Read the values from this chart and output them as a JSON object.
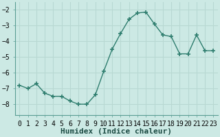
{
  "x": [
    0,
    1,
    2,
    3,
    4,
    5,
    6,
    7,
    8,
    9,
    10,
    11,
    12,
    13,
    14,
    15,
    16,
    17,
    18,
    19,
    20,
    21,
    22,
    23
  ],
  "y": [
    -6.8,
    -7.0,
    -6.7,
    -7.3,
    -7.5,
    -7.5,
    -7.8,
    -8.0,
    -8.0,
    -7.4,
    -5.9,
    -4.5,
    -3.5,
    -2.6,
    -2.2,
    -2.15,
    -2.9,
    -3.6,
    -3.7,
    -4.8,
    -4.8,
    -3.6,
    -4.6,
    -4.6
  ],
  "line_color": "#2e7d6e",
  "marker": "+",
  "marker_size": 5,
  "bg_color": "#cce9e4",
  "grid_color": "#b8d8d2",
  "xlabel": "Humidex (Indice chaleur)",
  "xlabel_fontsize": 8,
  "tick_fontsize": 7,
  "ylim": [
    -8.7,
    -1.5
  ],
  "xlim": [
    -0.5,
    23.5
  ],
  "yticks": [
    -8,
    -7,
    -6,
    -5,
    -4,
    -3,
    -2
  ],
  "xtick_labels": [
    "0",
    "1",
    "2",
    "3",
    "4",
    "5",
    "6",
    "7",
    "8",
    "9",
    "10",
    "11",
    "12",
    "13",
    "14",
    "15",
    "16",
    "17",
    "18",
    "19",
    "20",
    "21",
    "22",
    "23"
  ]
}
